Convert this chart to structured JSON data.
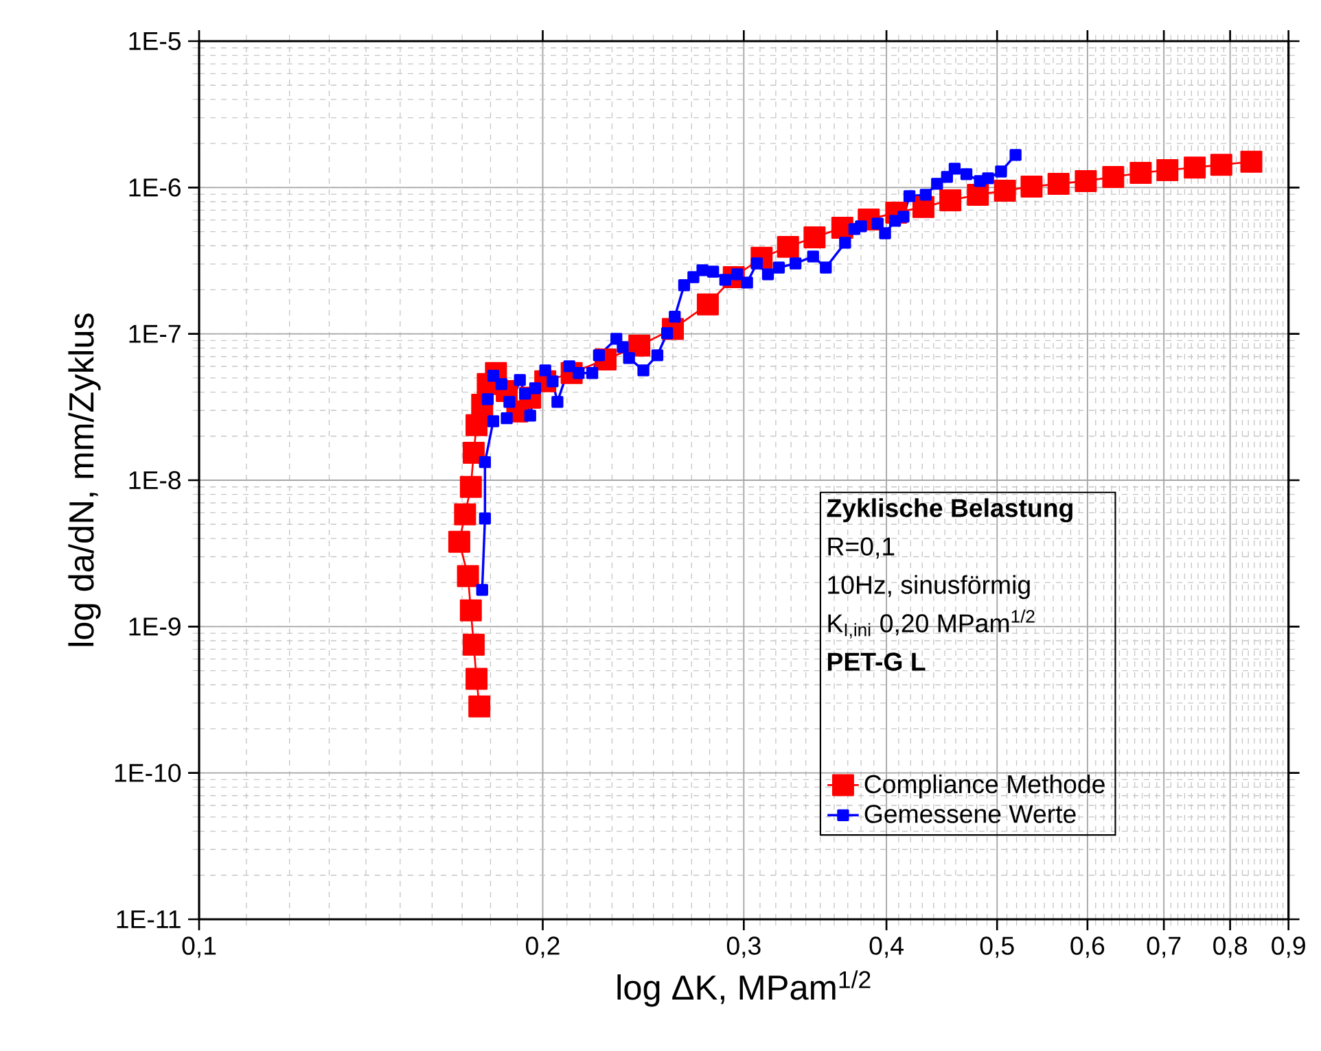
{
  "chart_data": {
    "type": "line",
    "xlabel": "log ΔK, MPam$^{1/2}$",
    "ylabel": "log da/dN, mm/Zyklus",
    "log": "xy",
    "xlim": [
      0.1,
      0.9
    ],
    "ylim": [
      1e-11,
      1e-05
    ],
    "xticks": [
      {
        "value": 0.1,
        "label": "0,1"
      },
      {
        "value": 0.2,
        "label": "0,2"
      },
      {
        "value": 0.3,
        "label": "0,3"
      },
      {
        "value": 0.4,
        "label": "0,4"
      },
      {
        "value": 0.5,
        "label": "0,5"
      },
      {
        "value": 0.6,
        "label": "0,6"
      },
      {
        "value": 0.7,
        "label": "0,7"
      },
      {
        "value": 0.8,
        "label": "0,8"
      },
      {
        "value": 0.9,
        "label": "0,9"
      }
    ],
    "yticks": [
      {
        "value": 1e-11,
        "label": "1E-11"
      },
      {
        "value": 1e-10,
        "label": "1E-10"
      },
      {
        "value": 1e-09,
        "label": "1E-9"
      },
      {
        "value": 1e-08,
        "label": "1E-8"
      },
      {
        "value": 1e-07,
        "label": "1E-7"
      },
      {
        "value": 1e-06,
        "label": "1E-6"
      },
      {
        "value": 1e-05,
        "label": "1E-5"
      }
    ],
    "grid": true,
    "legend": "right",
    "line_style": "solid",
    "annotations": [
      "Zyklische Belastung",
      "R=0,1",
      "10Hz, sinusförmig",
      "K$_{I,ini}$ 0,20 MPam$^{1/2}$",
      "PET-G L"
    ],
    "series": [
      {
        "name": "Compliance Methode",
        "color": "#ff0000",
        "marker": "square",
        "x": [
          0.176,
          0.175,
          0.174,
          0.173,
          0.172,
          0.169,
          0.171,
          0.173,
          0.174,
          0.175,
          0.177,
          0.179,
          0.182,
          0.186,
          0.19,
          0.195,
          0.201,
          0.212,
          0.227,
          0.243,
          0.26,
          0.279,
          0.294,
          0.311,
          0.328,
          0.346,
          0.366,
          0.386,
          0.408,
          0.431,
          0.455,
          0.481,
          0.508,
          0.536,
          0.566,
          0.598,
          0.632,
          0.668,
          0.705,
          0.745,
          0.786,
          0.835
        ],
        "values": [
          2.85e-10,
          4.39e-10,
          7.52e-10,
          1.29e-09,
          2.21e-09,
          3.8e-09,
          5.84e-09,
          9e-09,
          1.54e-08,
          2.38e-08,
          3.28e-08,
          4.54e-08,
          5.4e-08,
          4.07e-08,
          2.95e-08,
          3.66e-08,
          4.74e-08,
          5.4e-08,
          6.69e-08,
          8.31e-08,
          1.08e-07,
          1.59e-07,
          2.44e-07,
          3.31e-07,
          3.93e-07,
          4.57e-07,
          5.31e-07,
          6.05e-07,
          6.74e-07,
          7.35e-07,
          8.18e-07,
          8.92e-07,
          9.52e-07,
          1.015e-06,
          1.06e-06,
          1.107e-06,
          1.181e-06,
          1.259e-06,
          1.315e-06,
          1.37e-06,
          1.43e-06,
          1.5e-06
        ]
      },
      {
        "name": "Gemessene Werte",
        "color": "#0000ff",
        "marker": "square",
        "x": [
          0.177,
          0.178,
          0.178,
          0.181,
          0.179,
          0.181,
          0.184,
          0.187,
          0.186,
          0.191,
          0.193,
          0.195,
          0.197,
          0.201,
          0.204,
          0.206,
          0.211,
          0.215,
          0.221,
          0.224,
          0.232,
          0.235,
          0.238,
          0.245,
          0.252,
          0.257,
          0.261,
          0.266,
          0.271,
          0.276,
          0.282,
          0.289,
          0.296,
          0.302,
          0.308,
          0.315,
          0.322,
          0.333,
          0.345,
          0.354,
          0.368,
          0.375,
          0.38,
          0.393,
          0.399,
          0.407,
          0.414,
          0.419,
          0.433,
          0.443,
          0.452,
          0.459,
          0.47,
          0.483,
          0.491,
          0.504,
          0.519
        ],
        "values": [
          1.78e-09,
          5.48e-09,
          1.33e-08,
          2.53e-08,
          3.58e-08,
          5.17e-08,
          4.54e-08,
          3.43e-08,
          2.65e-08,
          4.84e-08,
          3.9e-08,
          2.76e-08,
          4.25e-08,
          5.63e-08,
          4.74e-08,
          3.43e-08,
          6.01e-08,
          5.4e-08,
          5.4e-08,
          7.14e-08,
          9.25e-08,
          8.13e-08,
          6.84e-08,
          5.63e-08,
          7.14e-08,
          1.01e-07,
          1.31e-07,
          2.15e-07,
          2.44e-07,
          2.72e-07,
          2.66e-07,
          2.34e-07,
          2.55e-07,
          2.24e-07,
          3.03e-07,
          2.55e-07,
          2.84e-07,
          3.03e-07,
          3.38e-07,
          2.84e-07,
          4.19e-07,
          5.2e-07,
          5.43e-07,
          5.67e-07,
          4.87e-07,
          5.92e-07,
          6.32e-07,
          8.73e-07,
          8.92e-07,
          1.06e-06,
          1.181e-06,
          1.344e-06,
          1.233e-06,
          1.107e-06,
          1.156e-06,
          1.287e-06,
          1.67e-06
        ]
      }
    ]
  }
}
